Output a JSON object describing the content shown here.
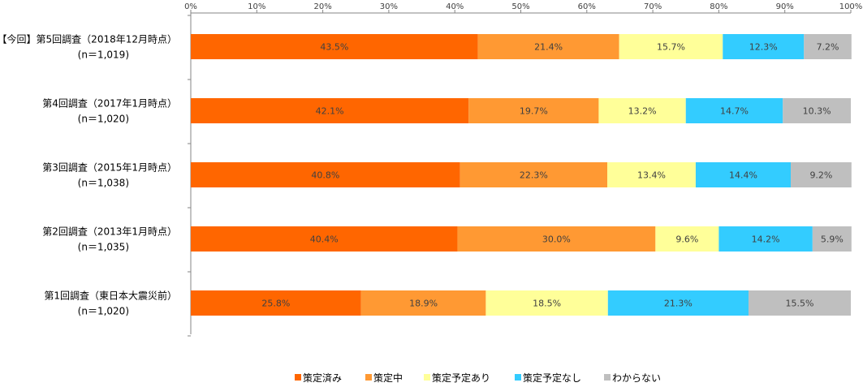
{
  "chart_data": {
    "type": "bar",
    "orientation": "horizontal",
    "stacked": true,
    "percent": true,
    "xlim": [
      0,
      100
    ],
    "x_ticks": [
      "0%",
      "10%",
      "20%",
      "30%",
      "40%",
      "50%",
      "60%",
      "70%",
      "80%",
      "90%",
      "100%"
    ],
    "categories": [
      {
        "line1": "【今回】第5回調査（2018年12月時点）",
        "line2": "(n＝1,019)"
      },
      {
        "line1": "第4回調査（2017年1月時点）",
        "line2": "(n＝1,020)"
      },
      {
        "line1": "第3回調査（2015年1月時点）",
        "line2": "(n＝1,038)"
      },
      {
        "line1": "第2回調査（2013年1月時点）",
        "line2": "(n＝1,035)"
      },
      {
        "line1": "第1回調査（東日本大震災前）",
        "line2": "(n＝1,020)"
      }
    ],
    "series": [
      {
        "name": "策定済み",
        "color": "#FF6600",
        "values": [
          43.5,
          42.1,
          40.8,
          40.4,
          25.8
        ]
      },
      {
        "name": "策定中",
        "color": "#FF9933",
        "values": [
          21.4,
          19.7,
          22.3,
          30.0,
          18.9
        ]
      },
      {
        "name": "策定予定あり",
        "color": "#FFFF99",
        "values": [
          15.7,
          13.2,
          13.4,
          9.6,
          18.5
        ]
      },
      {
        "name": "策定予定なし",
        "color": "#33CCFF",
        "values": [
          12.3,
          14.7,
          14.4,
          14.2,
          21.3
        ]
      },
      {
        "name": "わからない",
        "color": "#BFBFBF",
        "values": [
          7.2,
          10.3,
          9.2,
          5.9,
          15.5
        ]
      }
    ],
    "grid": false,
    "legend_position": "bottom"
  }
}
